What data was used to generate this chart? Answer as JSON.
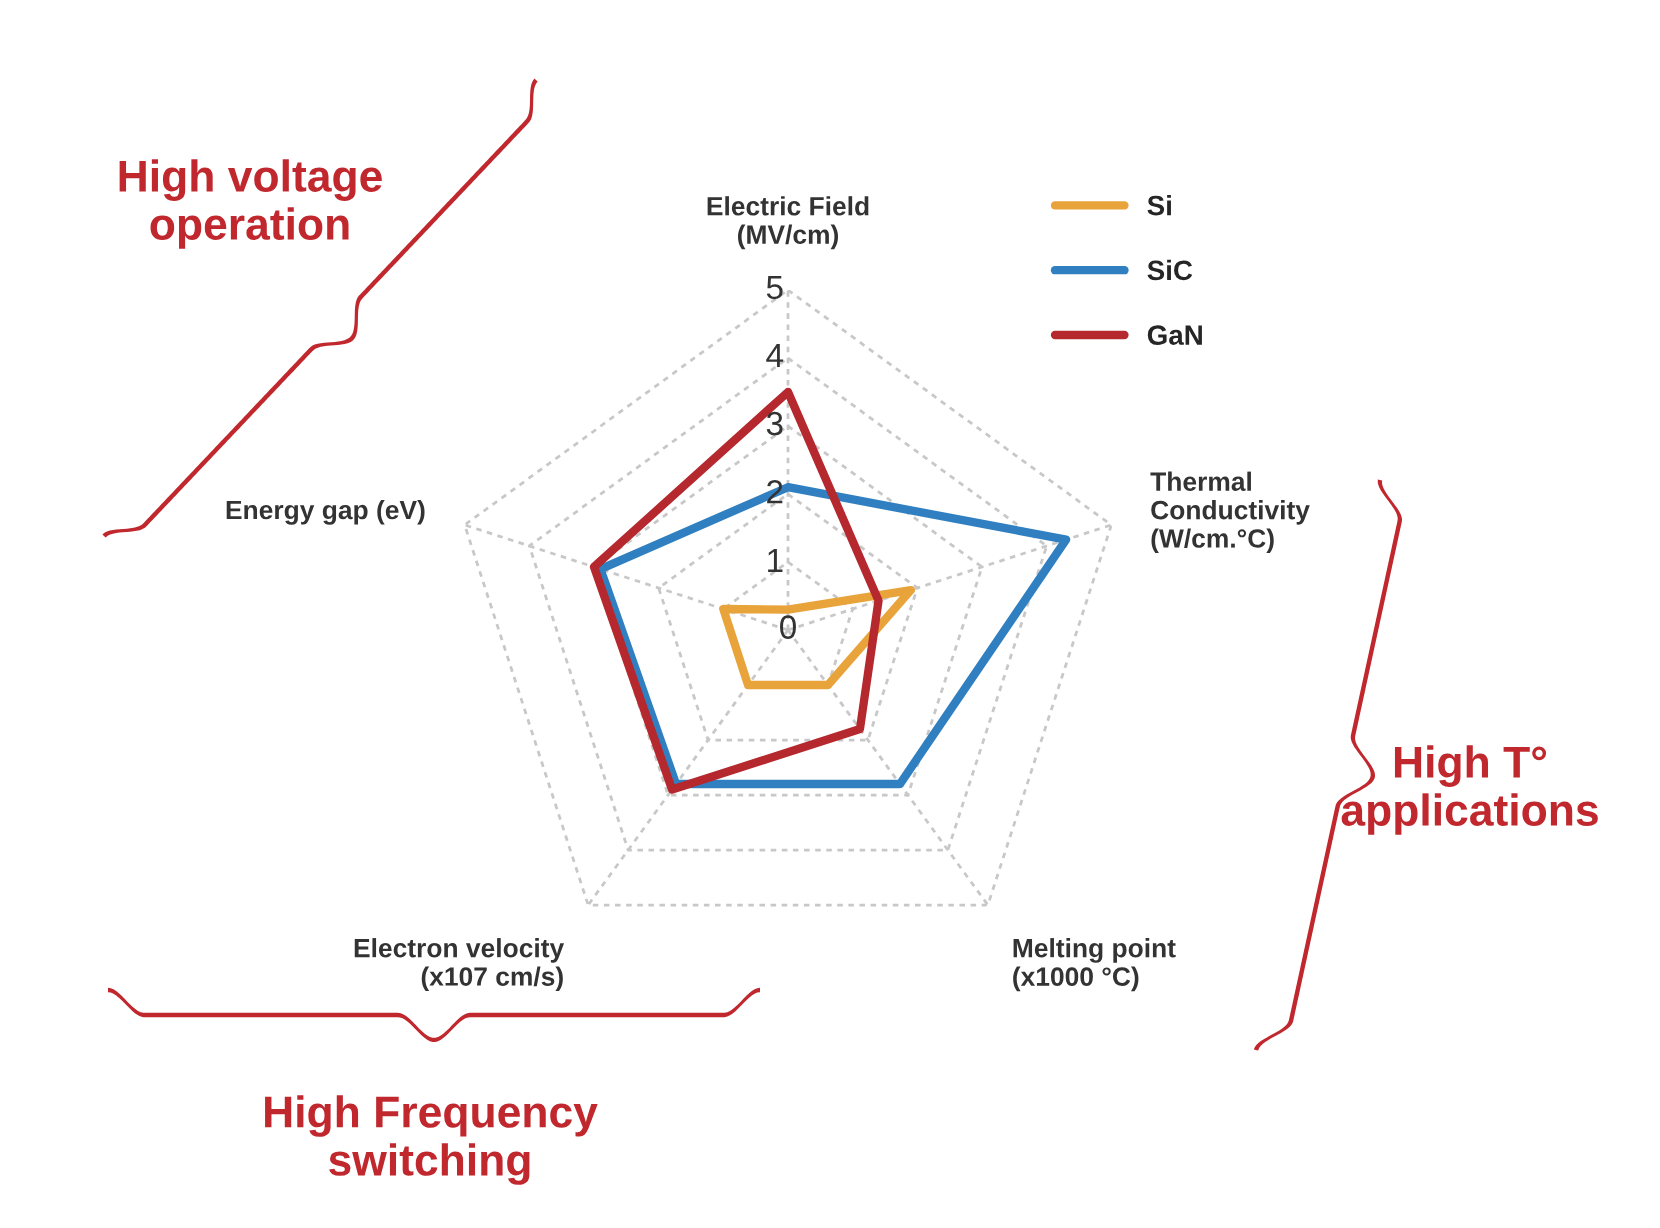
{
  "chart_data": {
    "type": "radar",
    "categories": [
      "Electric Field\n(MV/cm)",
      "Thermal\nConductivity\n(W/cm.°C)",
      "Melting point\n(x1000 °C)",
      "Electron velocity\n(x107 cm/s)",
      "Energy gap (eV)"
    ],
    "series": [
      {
        "name": "Si",
        "color": "#e8a33a",
        "values": [
          0.3,
          1.9,
          1.0,
          1.0,
          1.0
        ]
      },
      {
        "name": "SiC",
        "color": "#2f7fc1",
        "values": [
          2.1,
          4.3,
          2.8,
          2.8,
          2.9
        ]
      },
      {
        "name": "GaN",
        "color": "#b5282e",
        "values": [
          3.5,
          1.4,
          1.8,
          2.9,
          3.0
        ]
      }
    ],
    "ylim": [
      0,
      5
    ],
    "yticks": [
      0,
      1,
      2,
      3,
      4,
      5
    ],
    "grid": true,
    "legend": "top right",
    "annotations": [
      {
        "text": "High voltage\noperation"
      },
      {
        "text": "High T°\napplications"
      },
      {
        "text": "High Frequency\nswitching"
      }
    ]
  }
}
